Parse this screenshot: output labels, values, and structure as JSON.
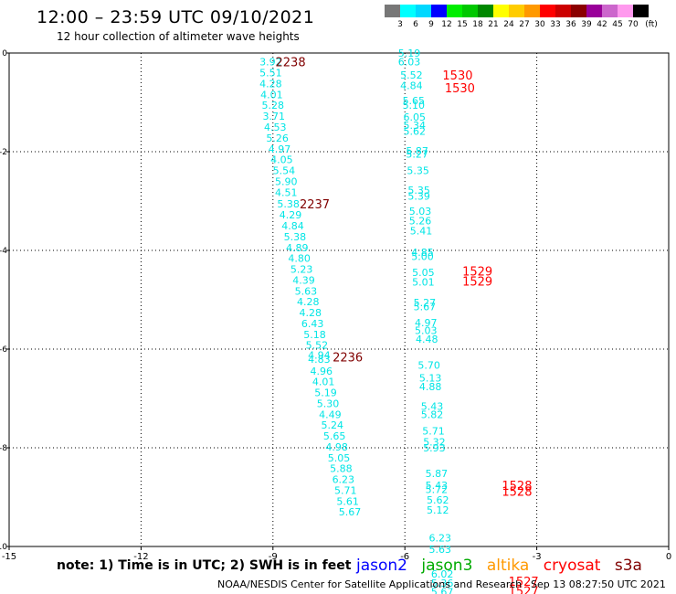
{
  "title": "12:00 – 23:59 UTC 09/10/2021",
  "subtitle": "12 hour collection of altimeter wave heights",
  "colors": {
    "swh_points": "#00e5e5",
    "time_labels": "#ff0000",
    "time_labels_dark": "#800000",
    "jason2": "#0000ff",
    "jason3": "#00aa00",
    "altika": "#ff9900",
    "cryosat": "#ff0000",
    "s3a": "#800000"
  },
  "colorbar": {
    "unit": "(ft)",
    "labels": [
      "3",
      "6",
      "9",
      "12",
      "15",
      "18",
      "21",
      "24",
      "27",
      "30",
      "33",
      "36",
      "39",
      "42",
      "45",
      "70"
    ],
    "colors": [
      "#777777",
      "#00ffff",
      "#00d8ff",
      "#0000ff",
      "#00ee00",
      "#00c800",
      "#008800",
      "#ffff00",
      "#ffcc00",
      "#ff9900",
      "#ff0000",
      "#cc0000",
      "#8b0000",
      "#990099",
      "#cc66cc",
      "#ff99ee",
      "#000000"
    ]
  },
  "footer": {
    "note": "note:  1) Time is in UTC;  2) SWH is in feet",
    "satellites": [
      "jason2",
      "jason3",
      "altika",
      "cryosat",
      "s3a"
    ],
    "credit": "NOAA/NESDIS Center for Satellite Applications and Research",
    "timestamp": "Sep 13 08:27:50 UTC 2021"
  },
  "chart_data": {
    "type": "scatter",
    "title": "12:00 – 23:59 UTC 09/10/2021",
    "subtitle": "12 hour collection of altimeter wave heights",
    "xlim": [
      -15,
      0
    ],
    "ylim": [
      -10,
      0
    ],
    "x_ticks": [
      "-15",
      "-12",
      "-9",
      "-6",
      "-3",
      "0"
    ],
    "y_ticks": [
      "0",
      "-2",
      "-4",
      "-6",
      "-8",
      "-10"
    ],
    "grid": true,
    "tracks": [
      {
        "satellite": "s3a",
        "points": [
          {
            "x": -9.05,
            "y": -0.18,
            "swh": "3.92"
          },
          {
            "x": -9.05,
            "y": -0.4,
            "swh": "5.51"
          },
          {
            "x": -9.05,
            "y": -0.62,
            "swh": "4.28"
          },
          {
            "x": -9.03,
            "y": -0.84,
            "swh": "4.01"
          },
          {
            "x": -9.0,
            "y": -1.06,
            "swh": "5.28"
          },
          {
            "x": -8.98,
            "y": -1.28,
            "swh": "3.71"
          },
          {
            "x": -8.95,
            "y": -1.5,
            "swh": "4.53"
          },
          {
            "x": -8.9,
            "y": -1.72,
            "swh": "5.26"
          },
          {
            "x": -8.85,
            "y": -1.94,
            "swh": "4.97"
          },
          {
            "x": -8.8,
            "y": -2.16,
            "swh": "4.05"
          },
          {
            "x": -8.75,
            "y": -2.38,
            "swh": "5.54"
          },
          {
            "x": -8.7,
            "y": -2.6,
            "swh": "5.90"
          },
          {
            "x": -8.7,
            "y": -2.82,
            "swh": "4.51"
          },
          {
            "x": -8.65,
            "y": -3.06,
            "swh": "5.38"
          },
          {
            "x": -8.6,
            "y": -3.28,
            "swh": "4.29"
          },
          {
            "x": -8.55,
            "y": -3.5,
            "swh": "4.84"
          },
          {
            "x": -8.5,
            "y": -3.72,
            "swh": "5.38"
          },
          {
            "x": -8.45,
            "y": -3.94,
            "swh": "4.89"
          },
          {
            "x": -8.4,
            "y": -4.16,
            "swh": "4.80"
          },
          {
            "x": -8.35,
            "y": -4.38,
            "swh": "5.23"
          },
          {
            "x": -8.3,
            "y": -4.6,
            "swh": "4.39"
          },
          {
            "x": -8.25,
            "y": -4.82,
            "swh": "5.63"
          },
          {
            "x": -8.2,
            "y": -5.04,
            "swh": "4.28"
          },
          {
            "x": -8.15,
            "y": -5.26,
            "swh": "4.28"
          },
          {
            "x": -8.1,
            "y": -5.48,
            "swh": "6.43"
          },
          {
            "x": -8.05,
            "y": -5.7,
            "swh": "5.18"
          },
          {
            "x": -8.0,
            "y": -5.92,
            "swh": "5.52"
          },
          {
            "x": -7.95,
            "y": -6.12,
            "swh": "4.94"
          },
          {
            "x": -7.95,
            "y": -6.2,
            "swh": "4.83"
          },
          {
            "x": -7.9,
            "y": -6.44,
            "swh": "4.96"
          },
          {
            "x": -7.85,
            "y": -6.66,
            "swh": "4.01"
          },
          {
            "x": -7.8,
            "y": -6.88,
            "swh": "5.19"
          },
          {
            "x": -7.75,
            "y": -7.1,
            "swh": "5.30"
          },
          {
            "x": -7.7,
            "y": -7.32,
            "swh": "4.49"
          },
          {
            "x": -7.65,
            "y": -7.54,
            "swh": "5.24"
          },
          {
            "x": -7.6,
            "y": -7.76,
            "swh": "5.65"
          },
          {
            "x": -7.55,
            "y": -7.98,
            "swh": "4.98"
          },
          {
            "x": -7.5,
            "y": -8.2,
            "swh": "5.05"
          },
          {
            "x": -7.45,
            "y": -8.42,
            "swh": "5.88"
          },
          {
            "x": -7.4,
            "y": -8.64,
            "swh": "6.23"
          },
          {
            "x": -7.35,
            "y": -8.86,
            "swh": "5.71"
          },
          {
            "x": -7.3,
            "y": -9.08,
            "swh": "5.61"
          },
          {
            "x": -7.25,
            "y": -9.3,
            "swh": "5.67"
          }
        ],
        "time_labels": [
          {
            "x": -8.6,
            "y": -0.18,
            "label": "2238"
          },
          {
            "x": -8.05,
            "y": -3.06,
            "label": "2237"
          },
          {
            "x": -7.3,
            "y": -6.16,
            "label": "2236"
          }
        ]
      },
      {
        "satellite": "cryosat",
        "points": [
          {
            "x": -5.9,
            "y": 0.0,
            "swh": "5.19"
          },
          {
            "x": -5.9,
            "y": -0.18,
            "swh": "6.03"
          },
          {
            "x": -5.85,
            "y": -0.44,
            "swh": "5.52"
          },
          {
            "x": -5.85,
            "y": -0.66,
            "swh": "4.84"
          },
          {
            "x": -5.8,
            "y": -0.96,
            "swh": "5.65"
          },
          {
            "x": -5.8,
            "y": -1.06,
            "swh": "5.10"
          },
          {
            "x": -5.78,
            "y": -1.3,
            "swh": "6.05"
          },
          {
            "x": -5.78,
            "y": -1.46,
            "swh": "5.34"
          },
          {
            "x": -5.78,
            "y": -1.58,
            "swh": "5.62"
          },
          {
            "x": -5.72,
            "y": -1.98,
            "swh": "5.87"
          },
          {
            "x": -5.72,
            "y": -2.05,
            "swh": "5.27"
          },
          {
            "x": -5.7,
            "y": -2.38,
            "swh": "5.35"
          },
          {
            "x": -5.68,
            "y": -2.78,
            "swh": "5.35"
          },
          {
            "x": -5.68,
            "y": -2.9,
            "swh": "5.39"
          },
          {
            "x": -5.65,
            "y": -3.2,
            "swh": "5.03"
          },
          {
            "x": -5.65,
            "y": -3.4,
            "swh": "5.26"
          },
          {
            "x": -5.63,
            "y": -3.6,
            "swh": "5.41"
          },
          {
            "x": -5.6,
            "y": -4.04,
            "swh": "4.85"
          },
          {
            "x": -5.6,
            "y": -4.12,
            "swh": "5.00"
          },
          {
            "x": -5.58,
            "y": -4.44,
            "swh": "5.05"
          },
          {
            "x": -5.58,
            "y": -4.64,
            "swh": "5.01"
          },
          {
            "x": -5.55,
            "y": -5.06,
            "swh": "5.27"
          },
          {
            "x": -5.55,
            "y": -5.14,
            "swh": "5.67"
          },
          {
            "x": -5.52,
            "y": -5.46,
            "swh": "4.97"
          },
          {
            "x": -5.52,
            "y": -5.62,
            "swh": "5.03"
          },
          {
            "x": -5.5,
            "y": -5.8,
            "swh": "4.48"
          },
          {
            "x": -5.45,
            "y": -6.32,
            "swh": "5.70"
          },
          {
            "x": -5.42,
            "y": -6.58,
            "swh": "5.13"
          },
          {
            "x": -5.42,
            "y": -6.76,
            "swh": "4.88"
          },
          {
            "x": -5.38,
            "y": -7.16,
            "swh": "5.43"
          },
          {
            "x": -5.38,
            "y": -7.32,
            "swh": "5.82"
          },
          {
            "x": -5.35,
            "y": -7.66,
            "swh": "5.71"
          },
          {
            "x": -5.33,
            "y": -7.88,
            "swh": "5.32"
          },
          {
            "x": -5.33,
            "y": -8.0,
            "swh": "5.93"
          },
          {
            "x": -5.28,
            "y": -8.52,
            "swh": "5.87"
          },
          {
            "x": -5.28,
            "y": -8.76,
            "swh": "5.43"
          },
          {
            "x": -5.28,
            "y": -8.84,
            "swh": "5.72"
          },
          {
            "x": -5.25,
            "y": -9.06,
            "swh": "5.62"
          },
          {
            "x": -5.25,
            "y": -9.26,
            "swh": "5.12"
          },
          {
            "x": -5.2,
            "y": -9.82,
            "swh": "6.23"
          },
          {
            "x": -5.2,
            "y": -10.06,
            "swh": "5.63"
          },
          {
            "x": -5.15,
            "y": -10.56,
            "swh": "6.02"
          },
          {
            "x": -5.15,
            "y": -10.74,
            "swh": "5.36"
          },
          {
            "x": -5.15,
            "y": -10.92,
            "swh": "5.67"
          }
        ],
        "time_labels": [
          {
            "x": -4.8,
            "y": -0.44,
            "label": "1530"
          },
          {
            "x": -4.75,
            "y": -0.7,
            "label": "1530"
          },
          {
            "x": -4.35,
            "y": -4.42,
            "label": "1529"
          },
          {
            "x": -4.35,
            "y": -4.62,
            "label": "1529"
          },
          {
            "x": -3.45,
            "y": -8.76,
            "label": "1528"
          },
          {
            "x": -3.45,
            "y": -8.88,
            "label": "1528"
          },
          {
            "x": -3.3,
            "y": -10.7,
            "label": "1527"
          },
          {
            "x": -3.3,
            "y": -10.9,
            "label": "1527"
          }
        ]
      }
    ]
  }
}
